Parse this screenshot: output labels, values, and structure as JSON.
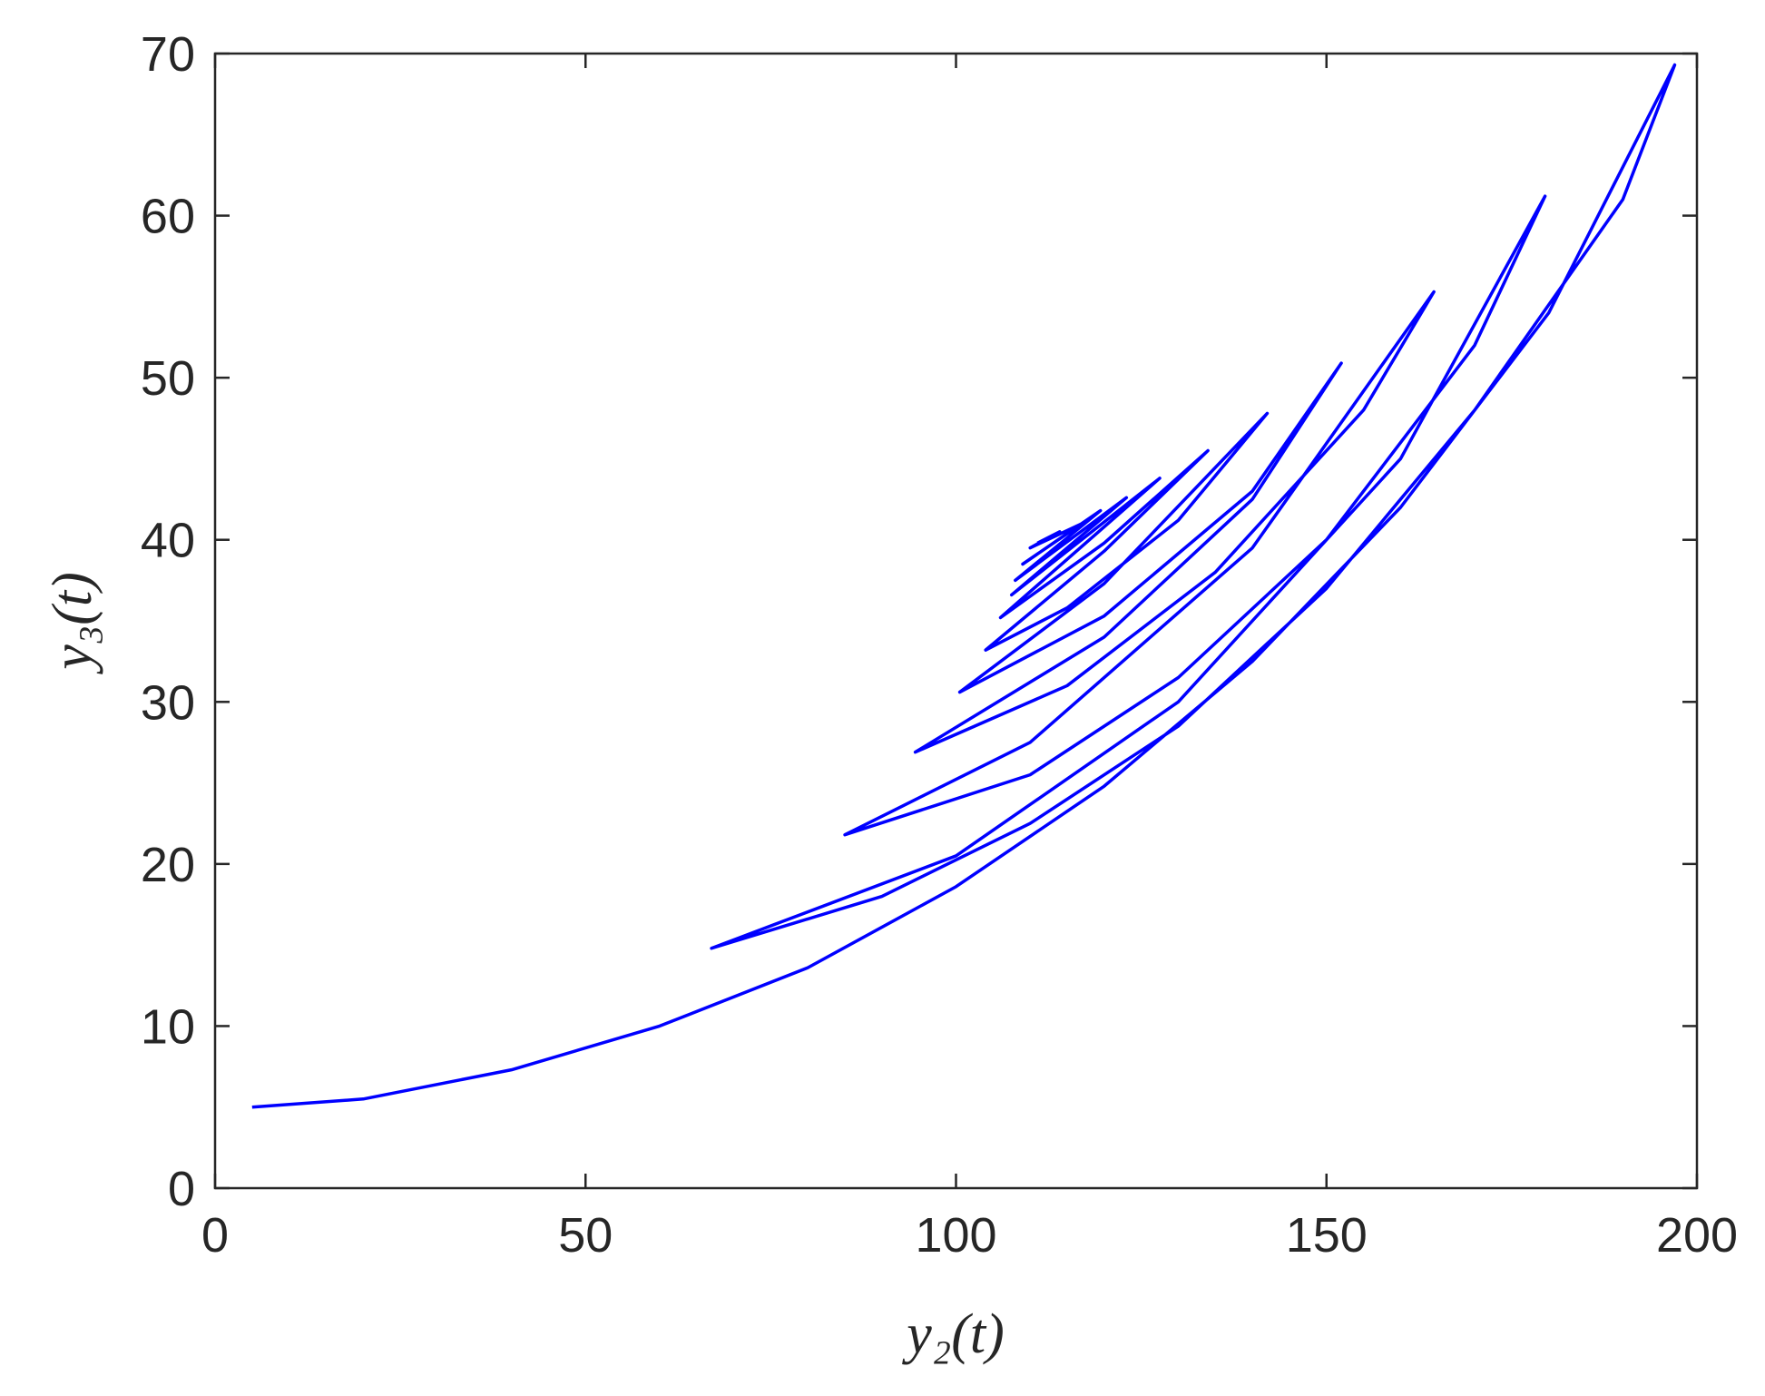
{
  "chart_data": {
    "type": "line",
    "xlabel": "y₂(t)",
    "ylabel": "y₃(t)",
    "xlim": [
      0,
      200
    ],
    "ylim": [
      0,
      70
    ],
    "xticks": [
      0,
      50,
      100,
      150,
      200
    ],
    "yticks": [
      0,
      10,
      20,
      30,
      40,
      50,
      60,
      70
    ],
    "series": [
      {
        "color": "#0000ff",
        "x": [
          5,
          20,
          40,
          60,
          80,
          100,
          120,
          140,
          160,
          180,
          197,
          190,
          170,
          150,
          130,
          110,
          90,
          67,
          100,
          130,
          160,
          179.5,
          170,
          150,
          130,
          110,
          85,
          110,
          140,
          164.5,
          155,
          135,
          115,
          94.5,
          120,
          140,
          152,
          140,
          120,
          100.5,
          120,
          142,
          130,
          115,
          104,
          120,
          134,
          120,
          106,
          127.5,
          107.5,
          123,
          108,
          119.5,
          109,
          117,
          110,
          114,
          111
        ],
        "values": [
          5,
          5.5,
          7.3,
          10,
          13.6,
          18.6,
          24.8,
          32.5,
          42,
          54,
          69.3,
          61,
          48,
          37,
          28.5,
          22.5,
          18,
          14.8,
          20.5,
          30,
          45,
          61.2,
          52,
          40,
          31.5,
          25.5,
          21.8,
          27.5,
          39.5,
          55.3,
          48,
          38,
          31,
          26.9,
          34,
          42.5,
          50.9,
          43,
          35.3,
          30.6,
          37.3,
          47.8,
          41.2,
          35.8,
          33.2,
          39.3,
          45.5,
          39.8,
          35.2,
          43.8,
          36.6,
          42.6,
          37.5,
          41.8,
          38.5,
          41,
          39.5,
          40.5,
          39.8
        ]
      }
    ]
  }
}
